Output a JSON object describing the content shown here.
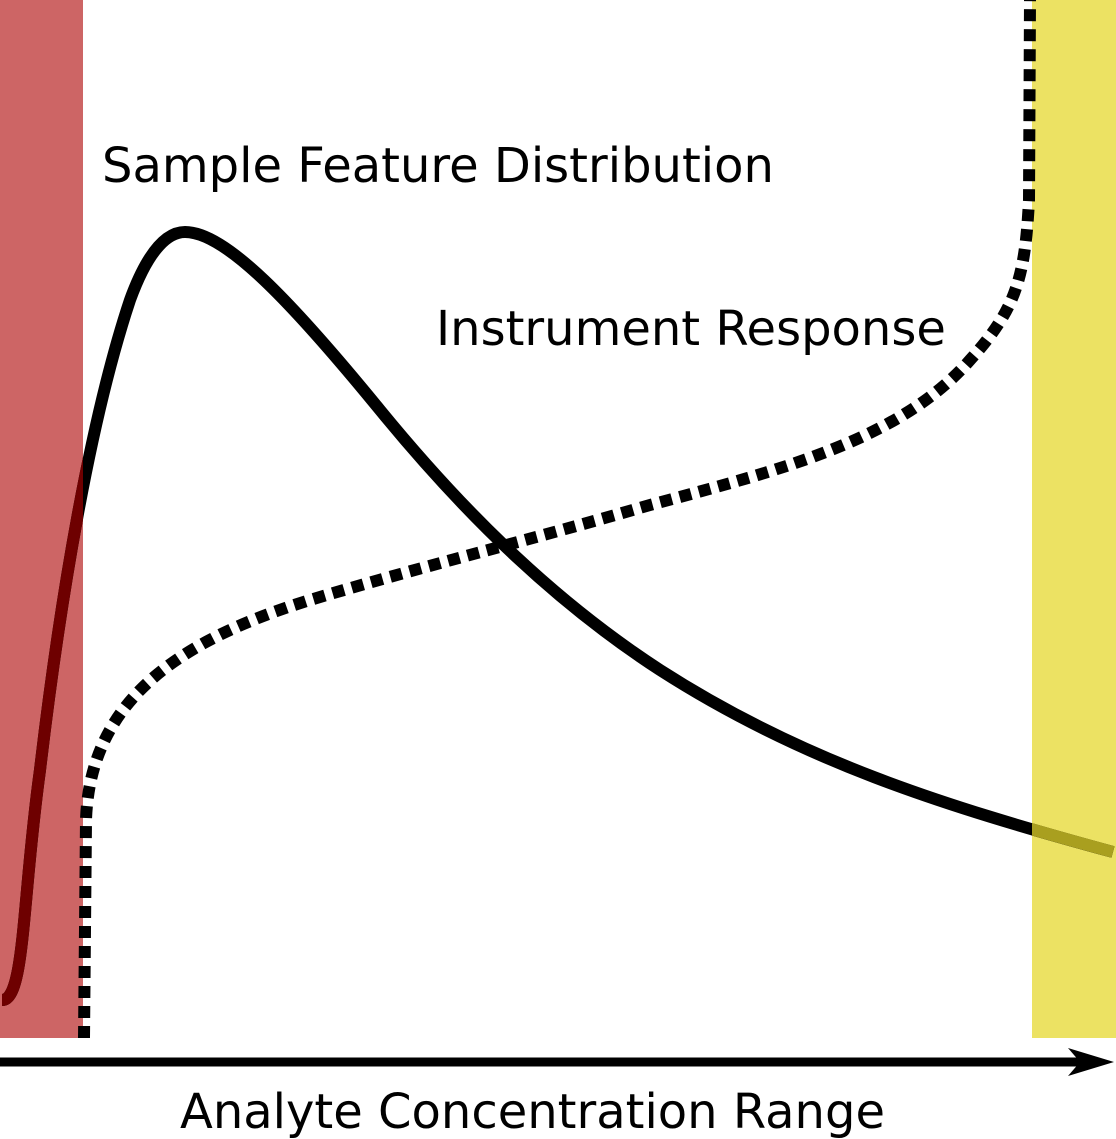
{
  "diagram": {
    "labels": {
      "distribution": "Sample Feature Distribution",
      "response": "Instrument Response",
      "axis": "Analyte Concentration Range"
    },
    "colors": {
      "low_region": "#cd6565",
      "high_region": "#ece263",
      "curve": "#000000",
      "background": "#ffffff"
    },
    "curves": {
      "distribution_line": "solid",
      "response_line": "dotted"
    }
  }
}
